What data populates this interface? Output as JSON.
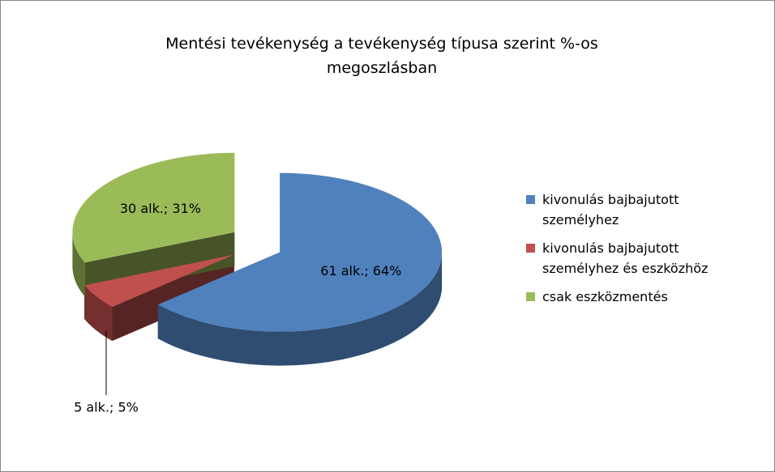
{
  "chart_data": {
    "type": "pie3d",
    "title": "Mentési tevékenység a tevékenység típusa szerint %-os megoszlásban",
    "categories": [
      "kivonulás bajbajutott személyhez",
      "kivonulás bajbajutott személyhez és eszközhöz",
      "csak eszközmentés"
    ],
    "values": [
      61,
      5,
      30
    ],
    "value_labels": [
      "61 alk.; 64%",
      "5 alk.; 5%",
      "30 alk.; 31%"
    ],
    "colors": [
      "#4f81bd",
      "#c0504d",
      "#9bbb59"
    ],
    "legend": "right"
  }
}
